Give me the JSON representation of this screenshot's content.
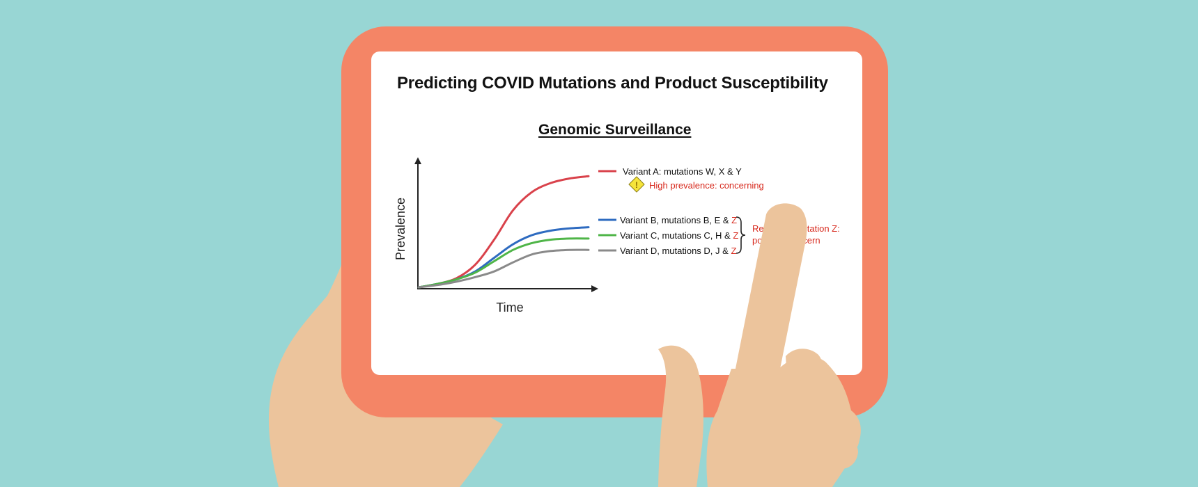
{
  "slide": {
    "title": "Predicting COVID Mutations and Product Susceptibility",
    "section_heading": "Genomic Surveillance "
  },
  "chart_data": {
    "type": "line",
    "xlabel": "Time",
    "ylabel": "Prevalence",
    "series": [
      {
        "name": "Variant A: mutations W, X & Y",
        "color": "#d9424b",
        "values": [
          0.0,
          0.03,
          0.08,
          0.2,
          0.42,
          0.68,
          0.84,
          0.92,
          0.96,
          0.98
        ]
      },
      {
        "name_prefix": "Variant B, mutations B, E & ",
        "name_highlight": "Z",
        "color": "#2e6bc0",
        "values": [
          0.0,
          0.03,
          0.07,
          0.14,
          0.26,
          0.38,
          0.46,
          0.5,
          0.52,
          0.53
        ]
      },
      {
        "name_prefix": "Variant C, mutations C, H & ",
        "name_highlight": "Z",
        "color": "#4fb548",
        "values": [
          0.0,
          0.03,
          0.07,
          0.13,
          0.23,
          0.33,
          0.39,
          0.42,
          0.43,
          0.43
        ]
      },
      {
        "name_prefix": "Variant D, mutations D, J & ",
        "name_highlight": "Z",
        "color": "#8a8a8a",
        "values": [
          0.0,
          0.02,
          0.05,
          0.09,
          0.14,
          0.22,
          0.29,
          0.32,
          0.33,
          0.33
        ]
      }
    ],
    "annotations": {
      "warning": "High prevalence: concerning",
      "recurrent_line1": "Recurrent mutation Z:",
      "recurrent_line2": "possible concern"
    },
    "colors": {
      "concern": "#d7281c",
      "warning_fill": "#f6e43a"
    }
  }
}
